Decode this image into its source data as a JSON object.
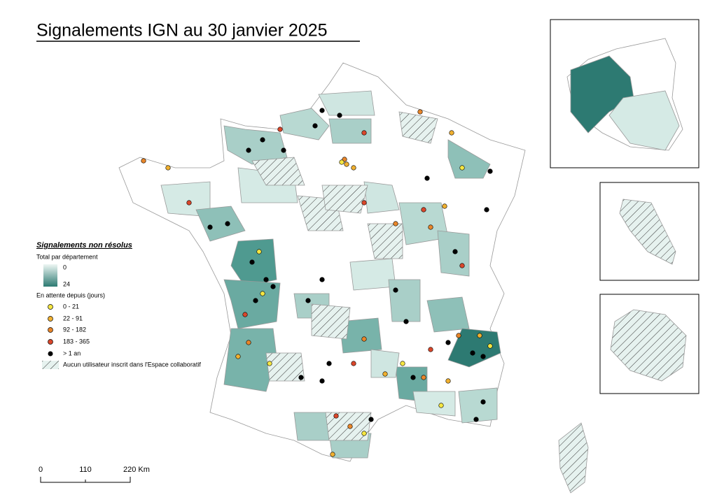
{
  "header": {
    "title": "Signalements IGN au 30 janvier 2025"
  },
  "legend": {
    "title": "Signalements non résolus",
    "choropleth_title": "Total par département",
    "choropleth_min": 0,
    "choropleth_max": 24,
    "points_title": "En attente depuis (jours)",
    "points": [
      "0 - 21",
      "22 - 91",
      "92 - 182",
      "183 - 365",
      "> 1 an"
    ],
    "hatch": "Aucun utilisateur inscrit dans l'Espace collaboratif"
  },
  "scale_bar": {
    "labels": [
      0,
      110,
      "220 Km"
    ]
  }
}
